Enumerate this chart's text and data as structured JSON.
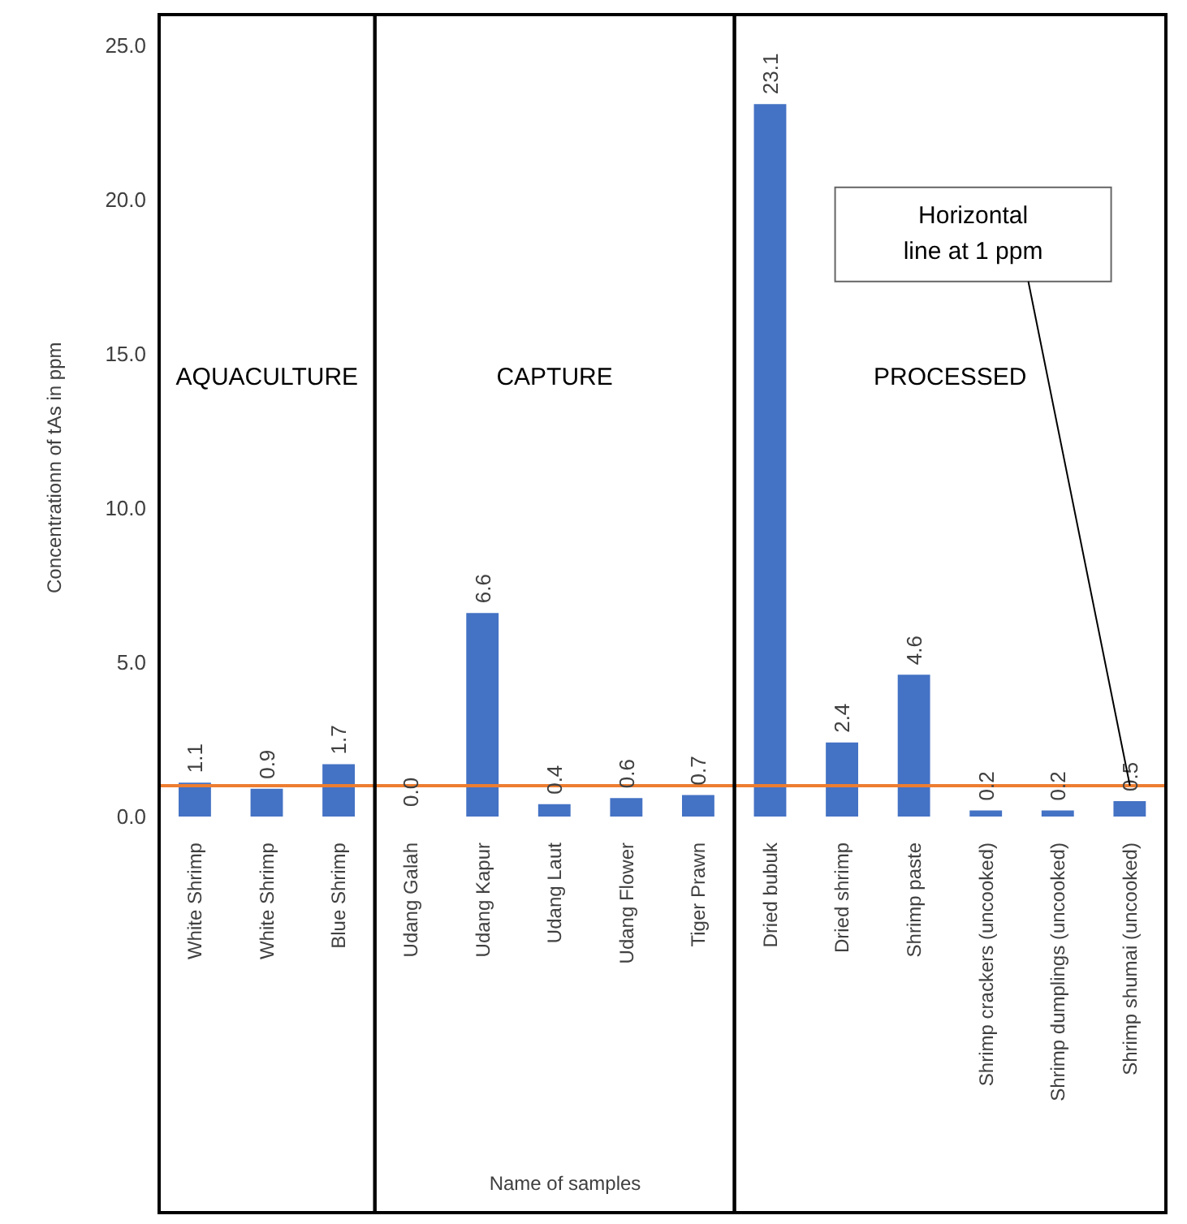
{
  "chart_data": {
    "type": "bar",
    "xlabel": "Name of samples",
    "ylabel": "Concentrationn of tAs in ppm",
    "categories": [
      "White Shrimp",
      "White Shrimp",
      "Blue Shrimp",
      "Udang Galah",
      "Udang Kapur",
      "Udang Laut",
      "Udang Flower",
      "Tiger Prawn",
      "Dried bubuk",
      "Dried shrimp",
      "Shrimp paste",
      "Shrimp crackers (uncooked)",
      "Shrimp dumplings (uncooked)",
      "Shrimp shumai (uncooked)"
    ],
    "values": [
      1.1,
      0.9,
      1.7,
      0.0,
      6.6,
      0.4,
      0.6,
      0.7,
      23.1,
      2.4,
      4.6,
      0.2,
      0.2,
      0.5
    ],
    "value_labels": [
      "1.1",
      "0.9",
      "1.7",
      "0.0",
      "6.6",
      "0.4",
      "0.6",
      "0.7",
      "23.1",
      "2.4",
      "4.6",
      "0.2",
      "0.2",
      "0.5"
    ],
    "color": "#4472c4",
    "ylim": [
      0,
      25
    ],
    "yticks": [
      {
        "value": 0,
        "label": "0.0"
      },
      {
        "value": 5,
        "label": "5.0"
      },
      {
        "value": 10,
        "label": "10.0"
      },
      {
        "value": 15,
        "label": "15.0"
      },
      {
        "value": 20,
        "label": "20.0"
      },
      {
        "value": 25,
        "label": "25.0"
      }
    ],
    "ref_lines": [
      {
        "axis": "y",
        "value": 1,
        "color": "#ed7d31"
      }
    ],
    "annotations": [
      "AQUACULTURE",
      "CAPTURE",
      "PROCESSED",
      {
        "text": "Horizontal line at 1 ppm",
        "x": "Shrimp shumai (uncooked)",
        "y": 1
      }
    ],
    "grid": false,
    "legend": false
  }
}
